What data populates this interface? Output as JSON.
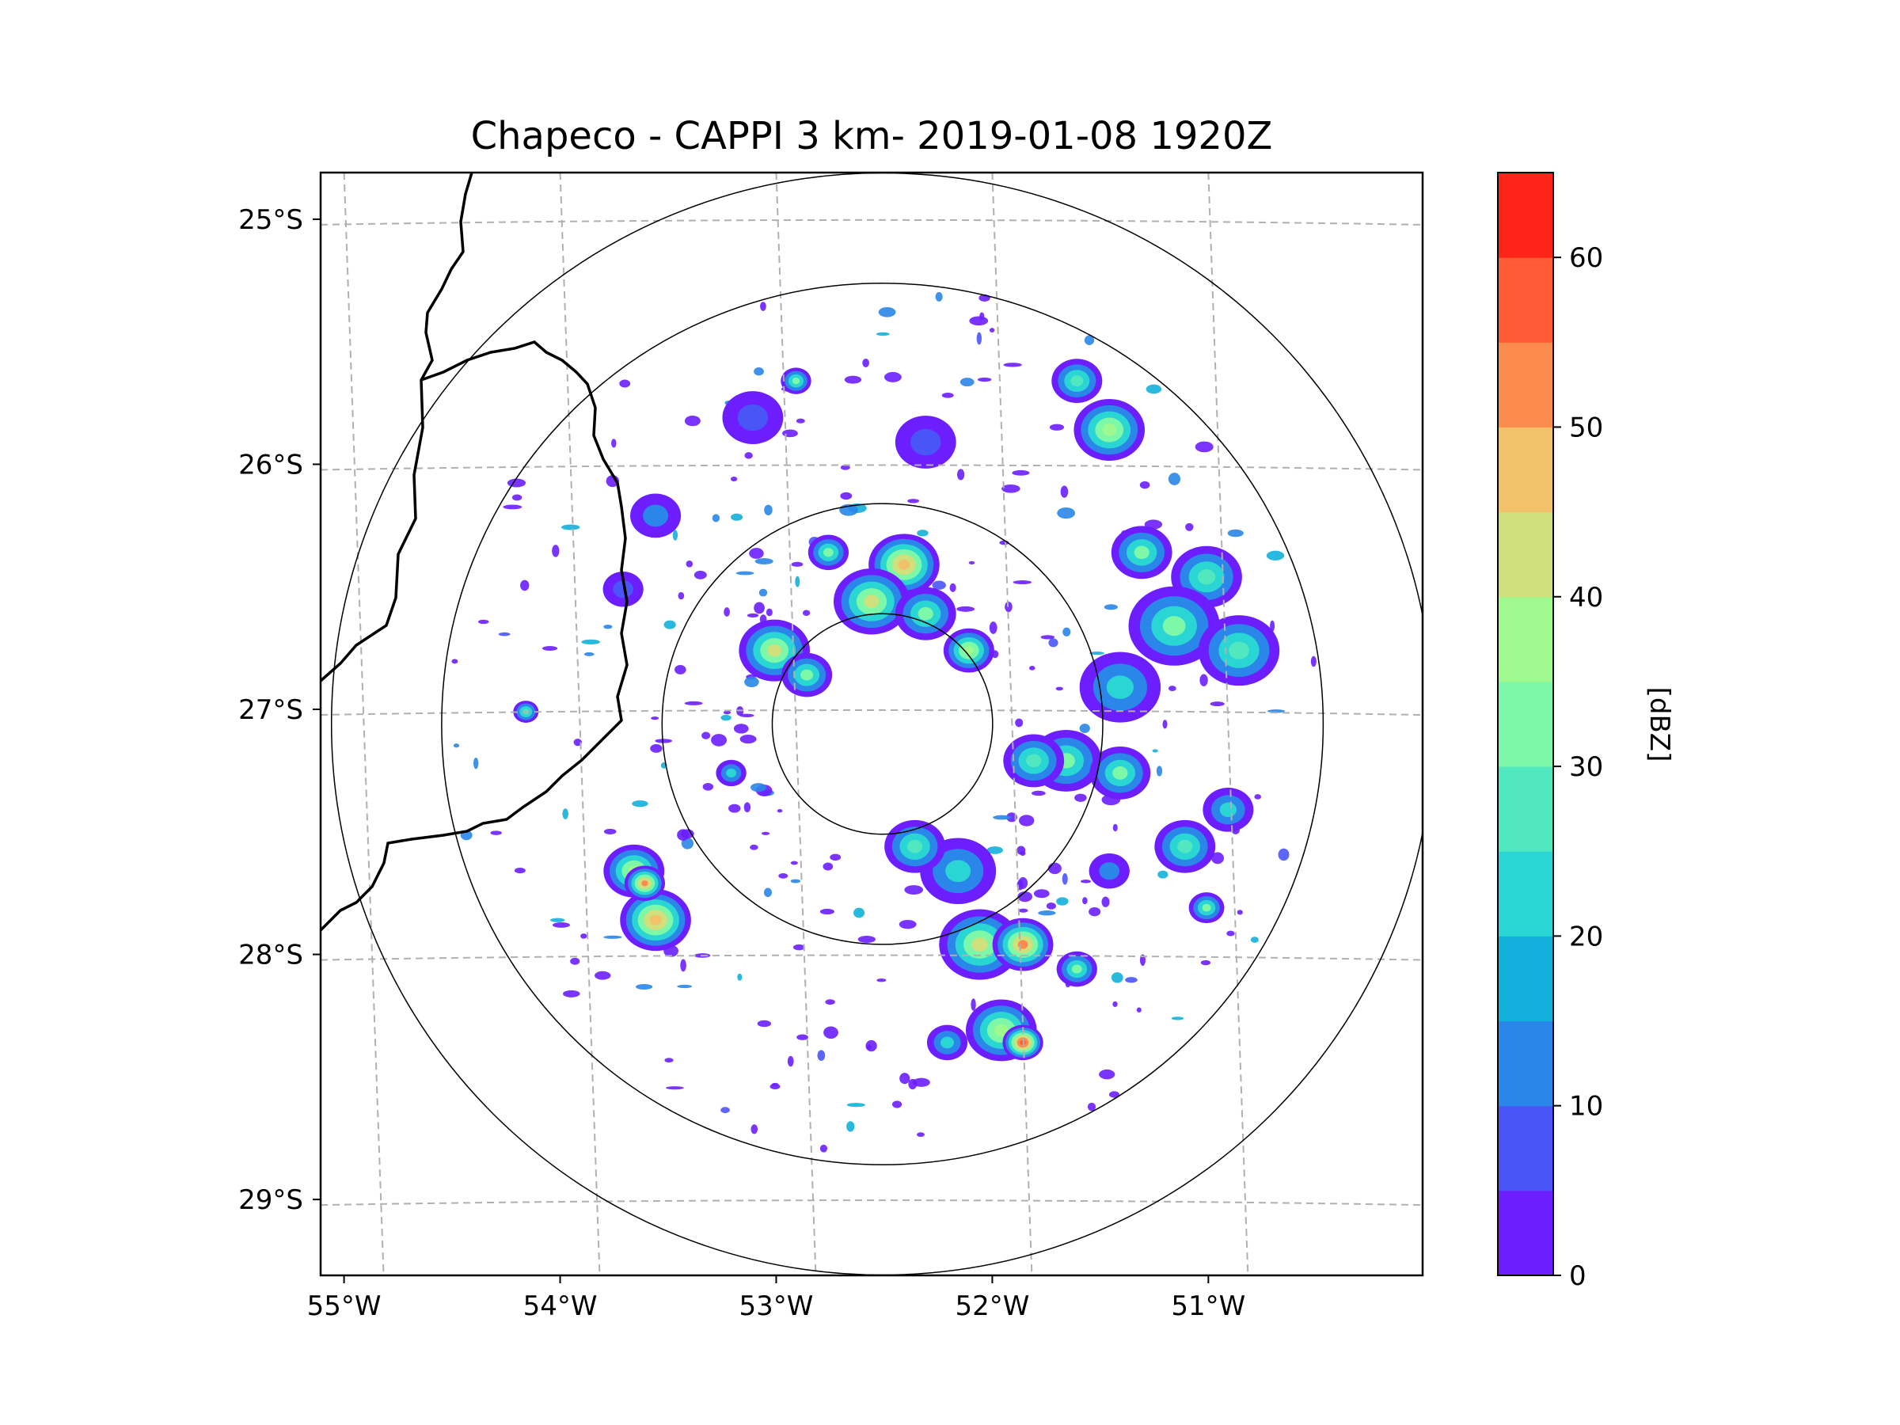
{
  "chart_data": {
    "type": "heatmap",
    "subtype": "radar-cappi-map",
    "title": "Chapeco - CAPPI 3 km- 2019-01-08 1920Z",
    "x_ticks": [
      "55°W",
      "54°W",
      "53°W",
      "52°W",
      "51°W"
    ],
    "y_ticks": [
      "25°S",
      "26°S",
      "27°S",
      "28°S",
      "29°S"
    ],
    "x_tick_values": [
      -55,
      -54,
      -53,
      -52,
      -51
    ],
    "y_tick_values": [
      -25,
      -26,
      -27,
      -28,
      -29
    ],
    "lon_range": [
      -55.2,
      -50.1
    ],
    "lat_range": [
      -29.3,
      -24.8
    ],
    "radar_center": {
      "lon": -52.6,
      "lat": -27.05
    },
    "range_rings_km": [
      50,
      100,
      200,
      250
    ],
    "gridlines": true,
    "colorbar": {
      "label": "[dBZ]",
      "min": 0,
      "max": 65,
      "step": 5,
      "ticks": [
        "0",
        "10",
        "20",
        "30",
        "40",
        "50",
        "60"
      ],
      "tick_values": [
        0,
        10,
        20,
        30,
        40,
        50,
        60
      ],
      "colors": [
        "#6c1eff",
        "#4a55f7",
        "#2a86e8",
        "#13b0dc",
        "#2ad6d4",
        "#52e8bf",
        "#7cf8a8",
        "#a0f98e",
        "#cfe07c",
        "#f2c26a",
        "#fc8c4e",
        "#fe5c36",
        "#ff2418"
      ]
    },
    "echoes": [
      {
        "lon": -52.5,
        "lat": -26.4,
        "r_km": 14,
        "dbz": 45
      },
      {
        "lon": -52.65,
        "lat": -26.55,
        "r_km": 15,
        "dbz": 40
      },
      {
        "lon": -52.4,
        "lat": -26.6,
        "r_km": 12,
        "dbz": 30
      },
      {
        "lon": -52.2,
        "lat": -26.75,
        "r_km": 10,
        "dbz": 35
      },
      {
        "lon": -52.85,
        "lat": -26.35,
        "r_km": 8,
        "dbz": 30
      },
      {
        "lon": -53.1,
        "lat": -26.75,
        "r_km": 14,
        "dbz": 40
      },
      {
        "lon": -52.95,
        "lat": -26.85,
        "r_km": 10,
        "dbz": 30
      },
      {
        "lon": -51.55,
        "lat": -25.85,
        "r_km": 14,
        "dbz": 35
      },
      {
        "lon": -51.4,
        "lat": -26.35,
        "r_km": 12,
        "dbz": 30
      },
      {
        "lon": -51.7,
        "lat": -25.65,
        "r_km": 10,
        "dbz": 25
      },
      {
        "lon": -51.1,
        "lat": -26.45,
        "r_km": 14,
        "dbz": 25
      },
      {
        "lon": -51.25,
        "lat": -26.65,
        "r_km": 18,
        "dbz": 30
      },
      {
        "lon": -50.95,
        "lat": -26.75,
        "r_km": 16,
        "dbz": 25
      },
      {
        "lon": -51.5,
        "lat": -26.9,
        "r_km": 16,
        "dbz": 20
      },
      {
        "lon": -51.75,
        "lat": -27.2,
        "r_km": 14,
        "dbz": 30
      },
      {
        "lon": -51.5,
        "lat": -27.25,
        "r_km": 12,
        "dbz": 30
      },
      {
        "lon": -51.2,
        "lat": -27.55,
        "r_km": 12,
        "dbz": 25
      },
      {
        "lon": -51.0,
        "lat": -27.4,
        "r_km": 10,
        "dbz": 20
      },
      {
        "lon": -51.9,
        "lat": -27.2,
        "r_km": 12,
        "dbz": 25
      },
      {
        "lon": -52.25,
        "lat": -27.65,
        "r_km": 15,
        "dbz": 20
      },
      {
        "lon": -52.45,
        "lat": -27.55,
        "r_km": 12,
        "dbz": 25
      },
      {
        "lon": -52.15,
        "lat": -27.95,
        "r_km": 16,
        "dbz": 40
      },
      {
        "lon": -51.95,
        "lat": -27.95,
        "r_km": 12,
        "dbz": 50
      },
      {
        "lon": -52.05,
        "lat": -28.3,
        "r_km": 14,
        "dbz": 35
      },
      {
        "lon": -51.95,
        "lat": -28.35,
        "r_km": 8,
        "dbz": 55
      },
      {
        "lon": -52.3,
        "lat": -28.35,
        "r_km": 8,
        "dbz": 20
      },
      {
        "lon": -51.7,
        "lat": -28.05,
        "r_km": 8,
        "dbz": 30
      },
      {
        "lon": -51.1,
        "lat": -27.8,
        "r_km": 7,
        "dbz": 30
      },
      {
        "lon": -53.75,
        "lat": -27.65,
        "r_km": 12,
        "dbz": 35
      },
      {
        "lon": -53.65,
        "lat": -27.85,
        "r_km": 14,
        "dbz": 45
      },
      {
        "lon": -53.7,
        "lat": -27.7,
        "r_km": 8,
        "dbz": 50
      },
      {
        "lon": -54.25,
        "lat": -27.0,
        "r_km": 5,
        "dbz": 25
      },
      {
        "lon": -53.3,
        "lat": -27.25,
        "r_km": 6,
        "dbz": 20
      },
      {
        "lon": -53.0,
        "lat": -25.65,
        "r_km": 6,
        "dbz": 30
      },
      {
        "lon": -53.65,
        "lat": -26.2,
        "r_km": 10,
        "dbz": 10
      },
      {
        "lon": -53.2,
        "lat": -25.8,
        "r_km": 12,
        "dbz": 5
      },
      {
        "lon": -52.4,
        "lat": -25.9,
        "r_km": 12,
        "dbz": 5
      },
      {
        "lon": -51.55,
        "lat": -27.65,
        "r_km": 8,
        "dbz": 10
      },
      {
        "lon": -53.8,
        "lat": -26.5,
        "r_km": 8,
        "dbz": 5
      }
    ]
  }
}
